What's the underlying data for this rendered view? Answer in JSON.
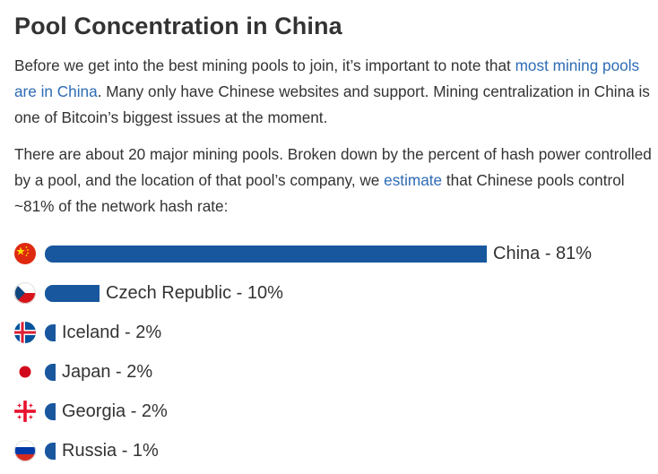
{
  "heading": "Pool Concentration in China",
  "para1": {
    "before": "Before we get into the best mining pools to join, it’s important to note that ",
    "link": "most mining pools are in China",
    "after": ". Many only have Chinese websites and support. Mining centralization in China is one of Bitcoin’s biggest issues at the moment."
  },
  "para2": {
    "before": "There are about 20 major mining pools. Broken down by the percent of hash power controlled by a pool, and the location of that pool’s company, we ",
    "link": "estimate",
    "after": " that Chinese pools control ~81% of the network hash rate:"
  },
  "colors": {
    "bar": "#18579e",
    "link": "#2e6cb5",
    "text": "#333333"
  },
  "chart_data": {
    "type": "bar",
    "orientation": "horizontal",
    "categories": [
      "China",
      "Czech Republic",
      "Iceland",
      "Japan",
      "Georgia",
      "Russia"
    ],
    "values": [
      81,
      10,
      2,
      2,
      2,
      1
    ],
    "unit": "%",
    "labels": [
      "China - 81%",
      "Czech Republic - 10%",
      "Iceland - 2%",
      "Japan - 2%",
      "Georgia - 2%",
      "Russia - 1%"
    ],
    "flags": [
      "china-flag-icon",
      "czech-flag-icon",
      "iceland-flag-icon",
      "japan-flag-icon",
      "georgia-flag-icon",
      "russia-flag-icon"
    ]
  }
}
